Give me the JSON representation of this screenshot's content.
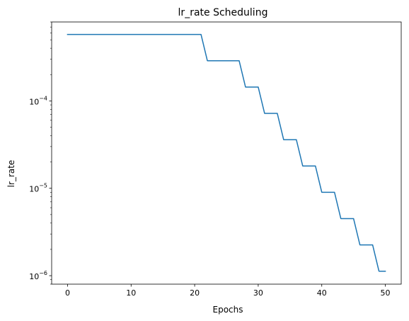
{
  "chart_data": {
    "type": "line",
    "title": "lr_rate Scheduling",
    "xlabel": "Epochs",
    "ylabel": "lr_rate",
    "y_scale": "log",
    "xlim": [
      -2.5,
      52.5
    ],
    "ylim": [
      8e-07,
      0.0008
    ],
    "grid": false,
    "legend": "none",
    "x_ticks": [
      0,
      10,
      20,
      30,
      40,
      50
    ],
    "y_major_ticks": [
      {
        "value": 1e-06,
        "base": "10",
        "exp": "−6"
      },
      {
        "value": 1e-05,
        "base": "10",
        "exp": "−5"
      },
      {
        "value": 0.0001,
        "base": "10",
        "exp": "−4"
      }
    ],
    "series": [
      {
        "color": "#1f77b4",
        "x": [
          0,
          1,
          2,
          3,
          4,
          5,
          6,
          7,
          8,
          9,
          10,
          11,
          12,
          13,
          14,
          15,
          16,
          17,
          18,
          19,
          20,
          21,
          22,
          23,
          24,
          25,
          26,
          27,
          28,
          29,
          30,
          31,
          32,
          33,
          34,
          35,
          36,
          37,
          38,
          39,
          40,
          41,
          42,
          43,
          44,
          45,
          46,
          47,
          48,
          49,
          50
        ],
        "y": [
          0.000576,
          0.000576,
          0.000576,
          0.000576,
          0.000576,
          0.000576,
          0.000576,
          0.000576,
          0.000576,
          0.000576,
          0.000576,
          0.000576,
          0.000576,
          0.000576,
          0.000576,
          0.000576,
          0.000576,
          0.000576,
          0.000576,
          0.000576,
          0.000576,
          0.000576,
          0.000288,
          0.000288,
          0.000288,
          0.000288,
          0.000288,
          0.000288,
          0.000144,
          0.000144,
          0.000144,
          7.2e-05,
          7.2e-05,
          7.2e-05,
          3.6e-05,
          3.6e-05,
          3.6e-05,
          1.8e-05,
          1.8e-05,
          1.8e-05,
          9e-06,
          9e-06,
          9e-06,
          4.5e-06,
          4.5e-06,
          4.5e-06,
          2.25e-06,
          2.25e-06,
          2.25e-06,
          1.125e-06,
          1.125e-06
        ]
      }
    ]
  }
}
